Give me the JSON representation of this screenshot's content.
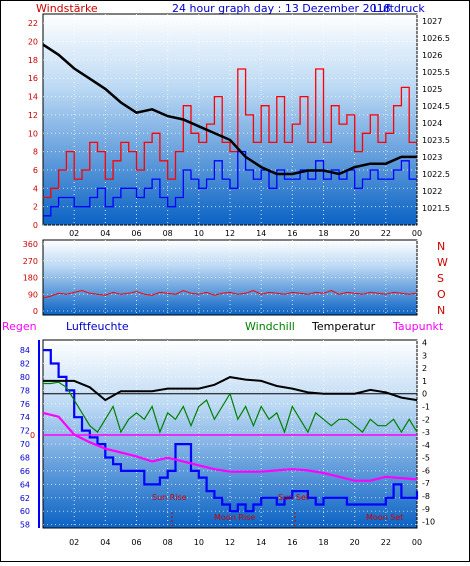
{
  "header": {
    "left_label": "Windstärke",
    "title": "24 hour graph day : 13 Dezember 2018",
    "right_label": "Luftdruck"
  },
  "legend": {
    "regen": "Regen",
    "luftfeuchte": "Luftfeuchte",
    "windchill": "Windchill",
    "temperatur": "Temperatur",
    "taupunkt": "Taupunkt"
  },
  "events": {
    "sun_rise": "Sun Rise",
    "sun_set": "Sun Set",
    "moon_rise": "Moon Rise",
    "moon_set": "Moon Set"
  },
  "colors": {
    "bg_top": "#ffffff",
    "bg_bottom": "#0b63c4",
    "wind_gust": "#ff0000",
    "wind_avg": "#0000ff",
    "pressure": "#000000",
    "direction": "#ff0000",
    "humidity": "#0000ff",
    "windchill": "#008000",
    "temperature": "#000000",
    "dewpoint": "#ff00ff",
    "label_red": "#cc0000",
    "rain_axis": "#0000ff"
  },
  "chart_data": [
    {
      "type": "line",
      "title": "24 hour graph day : 13 Dezember 2018",
      "x_ticks": [
        "02",
        "04",
        "06",
        "08",
        "10",
        "12",
        "14",
        "16",
        "18",
        "20",
        "22",
        "00"
      ],
      "left_axis": {
        "label": "Windstärke",
        "ticks": [
          "0",
          "2",
          "4",
          "6",
          "8",
          "10",
          "12",
          "14",
          "16",
          "18",
          "20",
          "22"
        ],
        "range": [
          0,
          23
        ]
      },
      "right_axis": {
        "label": "Luftdruck",
        "ticks": [
          "1021.5",
          "1022",
          "1022.5",
          "1023",
          "1023.5",
          "1024",
          "1024.5",
          "1025",
          "1025.5",
          "1026",
          "1026.5",
          "1027"
        ],
        "range": [
          1021,
          1027.2
        ]
      },
      "series": [
        {
          "name": "gust",
          "color": "#ff0000",
          "axis": "left",
          "x": [
            0,
            0.5,
            1,
            1.5,
            2,
            2.5,
            3,
            3.5,
            4,
            4.5,
            5,
            5.5,
            6,
            6.5,
            7,
            7.5,
            8,
            8.5,
            9,
            9.5,
            10,
            10.5,
            11,
            11.5,
            12,
            12.5,
            13,
            13.5,
            14,
            14.5,
            15,
            15.5,
            16,
            16.5,
            17,
            17.5,
            18,
            18.5,
            19,
            19.5,
            20,
            20.5,
            21,
            21.5,
            22,
            22.5,
            23,
            23.5,
            24
          ],
          "values": [
            3,
            4,
            6,
            8,
            5,
            6,
            9,
            8,
            5,
            7,
            9,
            8,
            6,
            9,
            10,
            7,
            5,
            8,
            13,
            10,
            9,
            11,
            14,
            9,
            8,
            17,
            12,
            9,
            13,
            9,
            14,
            9,
            11,
            14,
            9,
            17,
            9,
            13,
            11,
            12,
            8,
            10,
            12,
            9,
            10,
            13,
            15,
            9,
            9
          ]
        },
        {
          "name": "average",
          "color": "#0000ff",
          "axis": "left",
          "x": [
            0,
            0.5,
            1,
            1.5,
            2,
            2.5,
            3,
            3.5,
            4,
            4.5,
            5,
            5.5,
            6,
            6.5,
            7,
            7.5,
            8,
            8.5,
            9,
            9.5,
            10,
            10.5,
            11,
            11.5,
            12,
            12.5,
            13,
            13.5,
            14,
            14.5,
            15,
            15.5,
            16,
            16.5,
            17,
            17.5,
            18,
            18.5,
            19,
            19.5,
            20,
            20.5,
            21,
            21.5,
            22,
            22.5,
            23,
            23.5,
            24
          ],
          "values": [
            1,
            2,
            3,
            3,
            2,
            2,
            3,
            4,
            2,
            3,
            4,
            4,
            3,
            4,
            5,
            3,
            2,
            3,
            6,
            5,
            4,
            5,
            7,
            5,
            4,
            8,
            6,
            5,
            6,
            4,
            6,
            5,
            5,
            6,
            5,
            7,
            5,
            6,
            5,
            6,
            4,
            5,
            6,
            5,
            5,
            6,
            7,
            5,
            5
          ]
        },
        {
          "name": "pressure",
          "color": "#000000",
          "axis": "right",
          "x": [
            0,
            1,
            2,
            3,
            4,
            5,
            6,
            7,
            8,
            9,
            10,
            11,
            12,
            13,
            14,
            15,
            16,
            17,
            18,
            19,
            20,
            21,
            22,
            23,
            24
          ],
          "values": [
            1026.3,
            1026.0,
            1025.6,
            1025.3,
            1025.0,
            1024.6,
            1024.3,
            1024.4,
            1024.2,
            1024.1,
            1023.9,
            1023.7,
            1023.5,
            1023.0,
            1022.7,
            1022.5,
            1022.5,
            1022.6,
            1022.6,
            1022.5,
            1022.7,
            1022.8,
            1022.8,
            1023.0,
            1023.0
          ]
        }
      ]
    },
    {
      "type": "line",
      "left_axis": {
        "ticks": [
          "0",
          "90",
          "180",
          "270",
          "360"
        ],
        "range": [
          0,
          360
        ]
      },
      "right_axis": {
        "ticks": [
          "N",
          "W",
          "S",
          "O",
          "N"
        ]
      },
      "series": [
        {
          "name": "direction",
          "color": "#ff0000",
          "x": [
            0,
            0.5,
            1,
            1.5,
            2,
            2.5,
            3,
            3.5,
            4,
            4.5,
            5,
            5.5,
            6,
            6.5,
            7,
            7.5,
            8,
            8.5,
            9,
            9.5,
            10,
            10.5,
            11,
            11.5,
            12,
            12.5,
            13,
            13.5,
            14,
            14.5,
            15,
            15.5,
            16,
            16.5,
            17,
            17.5,
            18,
            18.5,
            19,
            19.5,
            20,
            20.5,
            21,
            21.5,
            22,
            22.5,
            23,
            23.5,
            24
          ],
          "values": [
            70,
            80,
            95,
            90,
            100,
            110,
            95,
            90,
            85,
            100,
            90,
            95,
            105,
            90,
            85,
            100,
            95,
            90,
            110,
            95,
            90,
            100,
            85,
            95,
            100,
            90,
            95,
            110,
            90,
            100,
            95,
            90,
            100,
            95,
            90,
            100,
            95,
            110,
            90,
            100,
            95,
            90,
            100,
            95,
            90,
            100,
            95,
            90,
            95
          ]
        }
      ]
    },
    {
      "type": "line",
      "left_axis": {
        "label": "Luftfeuchte",
        "ticks": [
          "58",
          "60",
          "62",
          "64",
          "66",
          "68",
          "70",
          "72",
          "74",
          "76",
          "78",
          "80",
          "82",
          "84"
        ],
        "range": [
          57.5,
          85.5
        ]
      },
      "right_axis": {
        "ticks": [
          "4",
          "3",
          "2",
          "1",
          "0",
          "-1",
          "-2",
          "-3",
          "-4",
          "-5",
          "-6",
          "-7",
          "-8",
          "-9",
          "-10"
        ],
        "range": [
          -10.5,
          4.2
        ]
      },
      "rain_axis": {
        "label": "Regen",
        "ticks": [
          "0"
        ],
        "zero_at": -3
      },
      "series": [
        {
          "name": "Luftfeuchte",
          "color": "#0000ff",
          "axis": "left",
          "x": [
            0,
            0.5,
            1,
            1.5,
            2,
            2.5,
            3,
            3.5,
            4,
            4.5,
            5,
            5.5,
            6,
            6.5,
            7,
            7.5,
            8,
            8.5,
            9,
            9.5,
            10,
            10.5,
            11,
            11.5,
            12,
            12.5,
            13,
            13.5,
            14,
            14.5,
            15,
            15.5,
            16,
            16.5,
            17,
            17.5,
            18,
            18.5,
            19,
            19.5,
            20,
            20.5,
            21,
            21.5,
            22,
            22.5,
            23,
            23.5,
            24
          ],
          "values": [
            84,
            82,
            80,
            78,
            74,
            72,
            71,
            70,
            68,
            67,
            66,
            66,
            66,
            64,
            64,
            65,
            66,
            70,
            70,
            66,
            65,
            63,
            62,
            61,
            60,
            61,
            60,
            61,
            62,
            62,
            61,
            62,
            63,
            63,
            62,
            61,
            62,
            62,
            62,
            61,
            61,
            61,
            61,
            61,
            62,
            64,
            62,
            62,
            63
          ]
        },
        {
          "name": "Temperatur",
          "color": "#000000",
          "axis": "right",
          "x": [
            0,
            1,
            2,
            3,
            4,
            5,
            6,
            7,
            8,
            9,
            10,
            11,
            12,
            13,
            14,
            15,
            16,
            17,
            18,
            19,
            20,
            21,
            22,
            23,
            24
          ],
          "values": [
            1.0,
            1.0,
            1.0,
            0.5,
            -0.5,
            0.2,
            0.2,
            0.2,
            0.4,
            0.4,
            0.4,
            0.7,
            1.3,
            1.1,
            1.0,
            0.6,
            0.4,
            0.1,
            0.0,
            0.0,
            0.0,
            0.3,
            0.1,
            -0.3,
            -0.5
          ]
        },
        {
          "name": "Windchill",
          "color": "#008000",
          "axis": "right",
          "x": [
            0,
            0.5,
            1,
            1.5,
            2,
            2.5,
            3,
            3.5,
            4,
            4.5,
            5,
            5.5,
            6,
            6.5,
            7,
            7.5,
            8,
            8.5,
            9,
            9.5,
            10,
            10.5,
            11,
            11.5,
            12,
            12.5,
            13,
            13.5,
            14,
            14.5,
            15,
            15.5,
            16,
            16.5,
            17,
            17.5,
            18,
            18.5,
            19,
            19.5,
            20,
            20.5,
            21,
            21.5,
            22,
            22.5,
            23,
            23.5,
            24
          ],
          "values": [
            0.8,
            0.8,
            0.9,
            0.5,
            -0.5,
            -1.5,
            -2.5,
            -3,
            -2,
            -1,
            -3,
            -2,
            -1.5,
            -2,
            -1,
            -3,
            -1.5,
            -2,
            -1,
            -2.5,
            -1,
            -0.5,
            -2,
            -1,
            0,
            -2,
            -1,
            -2.5,
            -1,
            -2,
            -1.5,
            -3,
            -1,
            -2,
            -3,
            -1.5,
            -2,
            -2.5,
            -2,
            -2,
            -2.5,
            -3,
            -2,
            -2.5,
            -2.5,
            -2,
            -3,
            -2,
            -3
          ]
        },
        {
          "name": "Taupunkt",
          "color": "#ff00ff",
          "axis": "right",
          "x": [
            0,
            1,
            2,
            3,
            4,
            5,
            6,
            7,
            8,
            9,
            10,
            11,
            12,
            13,
            14,
            15,
            16,
            17,
            18,
            19,
            20,
            21,
            22,
            23,
            24
          ],
          "values": [
            -1.5,
            -1.8,
            -3.2,
            -3.8,
            -4.3,
            -4.6,
            -4.9,
            -5.3,
            -5.0,
            -5.3,
            -5.6,
            -5.9,
            -6.1,
            -6.1,
            -6.1,
            -6.0,
            -5.9,
            -6.0,
            -6.2,
            -6.5,
            -6.8,
            -6.8,
            -6.5,
            -6.6,
            -6.7
          ]
        }
      ]
    }
  ]
}
